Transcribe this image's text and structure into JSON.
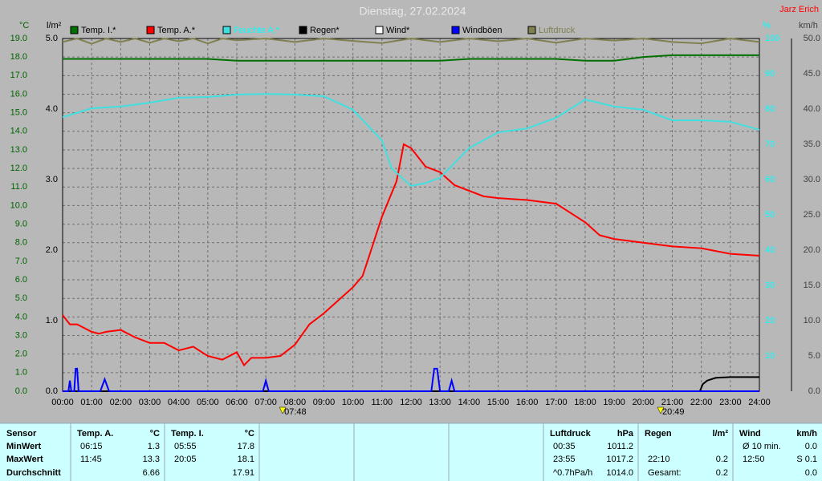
{
  "chart_data": {
    "type": "line",
    "title": "Dienstag, 27.02.2024",
    "author": "Jarz Erich",
    "axes": [
      {
        "label": "°C",
        "side": "left",
        "color": "#006400",
        "grid": true,
        "lim": [
          0,
          19
        ],
        "ticks": [
          {
            "value": 0,
            "label": "0.0"
          },
          {
            "value": 1,
            "label": "1.0"
          },
          {
            "value": 2,
            "label": "2.0"
          },
          {
            "value": 3,
            "label": "3.0"
          },
          {
            "value": 4,
            "label": "4.0"
          },
          {
            "value": 5,
            "label": "5.0"
          },
          {
            "value": 6,
            "label": "6.0"
          },
          {
            "value": 7,
            "label": "7.0"
          },
          {
            "value": 8,
            "label": "8.0"
          },
          {
            "value": 9,
            "label": "9.0"
          },
          {
            "value": 10,
            "label": "10.0"
          },
          {
            "value": 11,
            "label": "11.0"
          },
          {
            "value": 12,
            "label": "12.0"
          },
          {
            "value": 13,
            "label": "13.0"
          },
          {
            "value": 14,
            "label": "14.0"
          },
          {
            "value": 15,
            "label": "15.0"
          },
          {
            "value": 16,
            "label": "16.0"
          },
          {
            "value": 17,
            "label": "17.0"
          },
          {
            "value": 18,
            "label": "18.0"
          },
          {
            "value": 19,
            "label": "19.0"
          }
        ]
      },
      {
        "label": "l/m²",
        "side": "left2",
        "color": "#000000",
        "grid": false,
        "lim": [
          0,
          5
        ],
        "ticks": [
          {
            "value": 0,
            "label": "0.0"
          },
          {
            "value": 1,
            "label": "1.0"
          },
          {
            "value": 2,
            "label": "2.0"
          },
          {
            "value": 3,
            "label": "3.0"
          },
          {
            "value": 4,
            "label": "4.0"
          },
          {
            "value": 5,
            "label": "5.0"
          }
        ]
      },
      {
        "label": "%",
        "side": "right",
        "color": "#00ffff",
        "grid": false,
        "lim": [
          0,
          100
        ],
        "ticks": [
          10,
          20,
          30,
          40,
          50,
          60,
          70,
          80,
          90,
          100
        ]
      },
      {
        "label": "km/h",
        "side": "right2",
        "color": "#404040",
        "grid": false,
        "lim": [
          0,
          50
        ],
        "ticks": [
          {
            "value": 0,
            "label": "0.0"
          },
          {
            "value": 5,
            "label": "5.0"
          },
          {
            "value": 10,
            "label": "10.0"
          },
          {
            "value": 15,
            "label": "15.0"
          },
          {
            "value": 20,
            "label": "20.0"
          },
          {
            "value": 25,
            "label": "25.0"
          },
          {
            "value": 30,
            "label": "30.0"
          },
          {
            "value": 35,
            "label": "35.0"
          },
          {
            "value": 40,
            "label": "40.0"
          },
          {
            "value": 45,
            "label": "45.0"
          },
          {
            "value": 50,
            "label": "50.0"
          }
        ]
      }
    ],
    "xlim": [
      0,
      24
    ],
    "xticks": [
      {
        "value": 0,
        "label": "00:00"
      },
      {
        "value": 1,
        "label": "01:00"
      },
      {
        "value": 2,
        "label": "02:00"
      },
      {
        "value": 3,
        "label": "03:00"
      },
      {
        "value": 4,
        "label": "04:00"
      },
      {
        "value": 5,
        "label": "05:00"
      },
      {
        "value": 6,
        "label": "06:00"
      },
      {
        "value": 7,
        "label": "07:00"
      },
      {
        "value": 8,
        "label": "08:00"
      },
      {
        "value": 9,
        "label": "09:00"
      },
      {
        "value": 10,
        "label": "10:00"
      },
      {
        "value": 11,
        "label": "11:00"
      },
      {
        "value": 12,
        "label": "12:00"
      },
      {
        "value": 13,
        "label": "13:00"
      },
      {
        "value": 14,
        "label": "14:00"
      },
      {
        "value": 15,
        "label": "15:00"
      },
      {
        "value": 16,
        "label": "16:00"
      },
      {
        "value": 17,
        "label": "17:00"
      },
      {
        "value": 18,
        "label": "18:00"
      },
      {
        "value": 19,
        "label": "19:00"
      },
      {
        "value": 20,
        "label": "20:00"
      },
      {
        "value": 21,
        "label": "21:00"
      },
      {
        "value": 22,
        "label": "22:00"
      },
      {
        "value": 23,
        "label": "23:00"
      },
      {
        "value": 24,
        "label": "24:00"
      }
    ],
    "annotations": [
      {
        "text": "07:48",
        "x": 7.8
      },
      {
        "text": "20:49",
        "x": 20.82
      }
    ],
    "series": [
      {
        "name": "Temp. I.*",
        "color": "#007000",
        "axis": 0,
        "legend_text_color": "#000000",
        "x": [
          0,
          1,
          2,
          3,
          4,
          5,
          6,
          7,
          8,
          9,
          10,
          11,
          12,
          13,
          14,
          15,
          16,
          17,
          18,
          19,
          20,
          21,
          22,
          23,
          24
        ],
        "values": [
          17.9,
          17.9,
          17.9,
          17.9,
          17.9,
          17.9,
          17.8,
          17.8,
          17.8,
          17.8,
          17.8,
          17.8,
          17.8,
          17.8,
          17.9,
          17.9,
          17.9,
          17.9,
          17.8,
          17.8,
          18.0,
          18.1,
          18.1,
          18.1,
          18.1
        ]
      },
      {
        "name": "Temp. A.*",
        "color": "#ff0000",
        "axis": 0,
        "legend_text_color": "#000000",
        "x": [
          0,
          0.25,
          0.5,
          1,
          1.25,
          1.5,
          2,
          2.5,
          3,
          3.5,
          4,
          4.5,
          5,
          5.5,
          6,
          6.25,
          6.5,
          7,
          7.5,
          8,
          8.5,
          9,
          9.5,
          10,
          10.33,
          10.5,
          11,
          11.5,
          11.75,
          12,
          12.5,
          13,
          13.5,
          14,
          14.5,
          15,
          16,
          17,
          17.5,
          18,
          18.5,
          19,
          20,
          21,
          22,
          23,
          24
        ],
        "values": [
          4.1,
          3.6,
          3.6,
          3.2,
          3.1,
          3.2,
          3.3,
          2.9,
          2.6,
          2.6,
          2.2,
          2.4,
          1.9,
          1.7,
          2.1,
          1.4,
          1.8,
          1.8,
          1.9,
          2.5,
          3.6,
          4.2,
          4.9,
          5.6,
          6.2,
          7.0,
          9.4,
          11.3,
          13.3,
          13.1,
          12.1,
          11.8,
          11.1,
          10.8,
          10.5,
          10.4,
          10.3,
          10.1,
          9.6,
          9.1,
          8.4,
          8.2,
          8.0,
          7.8,
          7.7,
          7.4,
          7.3
        ]
      },
      {
        "name": "Feuchte A.*",
        "color": "#40e0e0",
        "axis": 2,
        "legend_text_color": "#00ffff",
        "x": [
          0,
          1,
          2,
          3,
          4,
          5,
          6,
          7,
          8,
          9,
          10,
          11,
          11.33,
          12,
          12.5,
          13,
          14,
          15,
          16,
          17,
          18,
          19,
          20,
          21,
          22,
          23,
          24
        ],
        "values": [
          77.7,
          80.2,
          80.7,
          81.8,
          83.2,
          83.4,
          84.1,
          84.3,
          84.1,
          83.6,
          79.8,
          71.1,
          63.2,
          58.2,
          59.0,
          60.5,
          68.9,
          73.4,
          74.5,
          77.5,
          82.7,
          80.7,
          79.8,
          76.8,
          76.8,
          76.4,
          74.1
        ]
      },
      {
        "name": "Regen*",
        "color": "#000000",
        "axis": 1,
        "legend_text_color": "#000000",
        "x": [
          0,
          21.95,
          22.05,
          22.2,
          22.5,
          23,
          24
        ],
        "values": [
          0,
          0,
          0.1,
          0.15,
          0.19,
          0.2,
          0.2
        ]
      },
      {
        "name": "Wind*",
        "color": "#ffffff",
        "axis": 3,
        "legend_text_color": "#000000",
        "x": [],
        "values": []
      },
      {
        "name": "Windböen",
        "color": "#0000ff",
        "axis": 3,
        "legend_text_color": "#000000",
        "x": [
          0,
          0.2,
          0.25,
          0.3,
          0.4,
          0.45,
          0.5,
          0.55,
          1.3,
          1.45,
          1.6,
          6.9,
          7.0,
          7.1,
          12.7,
          12.8,
          12.9,
          13.0,
          13.3,
          13.4,
          13.5,
          24
        ],
        "values": [
          0,
          0,
          1.5,
          0,
          0,
          3.2,
          3.2,
          0,
          0,
          1.7,
          0,
          0,
          1.5,
          0,
          0,
          3.2,
          3.2,
          0,
          0,
          1.5,
          0,
          0
        ]
      },
      {
        "name": "Luftdruck",
        "color": "#808050",
        "axis": 2,
        "legend_text_color": "#808050",
        "x": [
          0,
          0.5,
          1,
          1.5,
          2,
          2.5,
          3,
          3.5,
          4,
          4.5,
          5,
          5.5,
          6,
          7,
          8,
          9,
          10,
          11,
          12,
          13,
          14,
          15,
          16,
          17,
          18,
          19,
          20,
          21,
          22,
          23,
          24
        ],
        "values": [
          99,
          100,
          98.5,
          100,
          99,
          100,
          98.8,
          100,
          99.2,
          100,
          98.6,
          100,
          99.5,
          100,
          99,
          100,
          99.3,
          98.7,
          100,
          99,
          100,
          99.2,
          100,
          98.8,
          100,
          99.4,
          100,
          99,
          98.6,
          100,
          99
        ]
      }
    ]
  },
  "stats": {
    "blocks": [
      {
        "title": "Sensor",
        "rows": [
          {
            "time": "MinWert"
          },
          {
            "time": "MaxWert"
          },
          {
            "time": "Durchschnitt"
          }
        ]
      },
      {
        "title": "Temp. A.",
        "unit": "°C",
        "rows": [
          {
            "time": "06:15",
            "value": "1.3"
          },
          {
            "time": "11:45",
            "value": "13.3"
          },
          {
            "value": "6.66"
          }
        ]
      },
      {
        "title": "Temp. I.",
        "unit": "°C",
        "rows": [
          {
            "time": "05:55",
            "value": "17.8"
          },
          {
            "time": "20:05",
            "value": "18.1"
          },
          {
            "value": "17.91"
          }
        ]
      },
      {
        "title": "Luftdruck",
        "unit": "hPa",
        "rows": [
          {
            "time": "00:35",
            "value": "1011.2"
          },
          {
            "time": "23:55",
            "value": "1017.2"
          },
          {
            "time": "^0.7hPa/h",
            "value": "1014.0"
          }
        ]
      },
      {
        "title": "Regen",
        "unit": "l/m²",
        "rows": [
          null,
          {
            "time": "22:10",
            "value": "0.2"
          },
          {
            "time": "Gesamt:",
            "value": "0.2"
          }
        ]
      },
      {
        "title": "Wind",
        "unit": "km/h",
        "rows": [
          {
            "time": "Ø 10 min.",
            "value": "0.0"
          },
          {
            "time": "12:50",
            "value": "S 0.1"
          },
          {
            "value": "0.0"
          }
        ]
      }
    ]
  }
}
